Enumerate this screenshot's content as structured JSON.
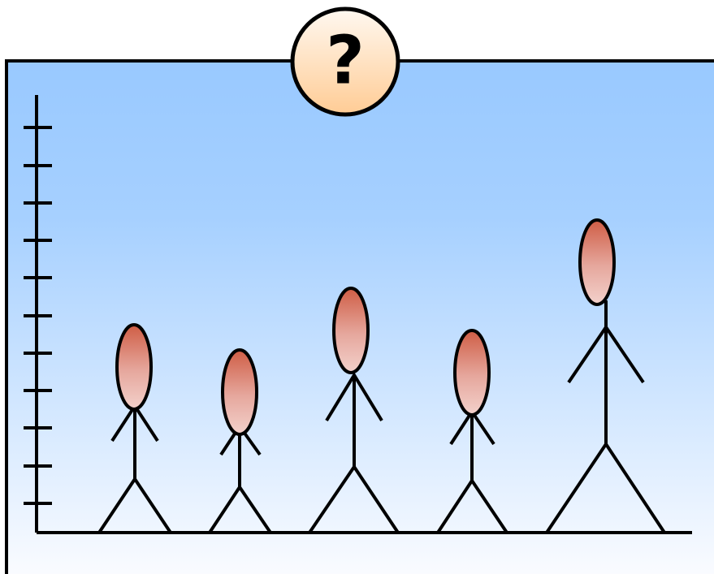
{
  "badge": {
    "symbol": "?"
  }
}
